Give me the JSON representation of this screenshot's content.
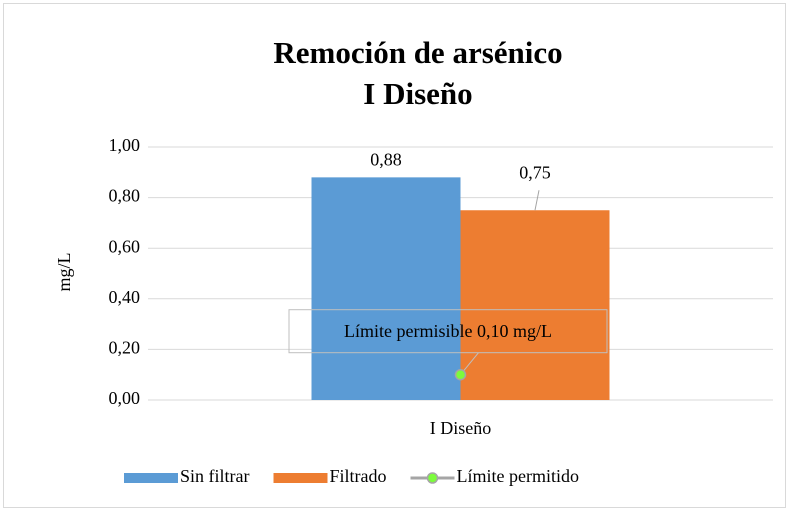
{
  "chart_data": {
    "type": "bar",
    "title": "Remoción de arsénico",
    "subtitle": "I Diseño",
    "y_label": "mg/L",
    "categories": [
      "I Diseño"
    ],
    "series": [
      {
        "name": "Sin filtrar",
        "color": "#5b9bd5",
        "values": [
          0.88
        ],
        "value_labels": [
          "0,88"
        ]
      },
      {
        "name": "Filtrado",
        "color": "#ed7d31",
        "values": [
          0.75
        ],
        "value_labels": [
          "0,75"
        ]
      },
      {
        "name": "Límite permitido",
        "type": "line",
        "color": "#a5a5a5",
        "marker_color": "#7cfc3c",
        "values": [
          0.1
        ]
      }
    ],
    "annotation": "Límite permisible 0,10 mg/L",
    "ylim": [
      0,
      1
    ],
    "yticks": [
      {
        "value": 0,
        "label": "0,00"
      },
      {
        "value": 0.2,
        "label": "0,20"
      },
      {
        "value": 0.4,
        "label": "0,40"
      },
      {
        "value": 0.6,
        "label": "0,60"
      },
      {
        "value": 0.8,
        "label": "0,80"
      },
      {
        "value": 1,
        "label": "1,00"
      }
    ],
    "grid": true,
    "legend": "bottom"
  }
}
